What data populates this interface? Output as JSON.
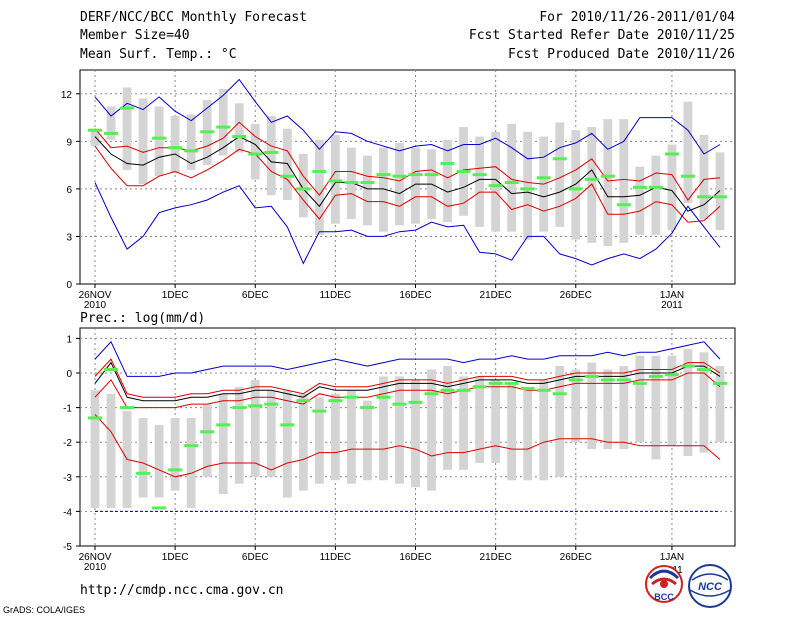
{
  "header": {
    "title": "DERF/NCC/BCC Monthly Forecast",
    "member_size": "Member Size=40",
    "forecast_period": "For 2010/11/26-2011/01/04",
    "started_refer_date": "Fcst Started Refer Date 2010/11/25",
    "produced_date": "Fcst Produced Date 2010/11/26"
  },
  "footer": {
    "url": "http://cmdp.ncc.cma.gov.cn",
    "credit": "GrADS: COLA/IGES",
    "logo_bcc": "BCC",
    "logo_ncc": "NCC",
    "logo_partial_year": "2011"
  },
  "colors": {
    "box": "#d4d4d4",
    "mean": "#000000",
    "inner": "#dd0000",
    "outer": "#0000cc",
    "marker": "#55ee55",
    "grid": "#888888"
  },
  "chart_data": [
    {
      "type": "line",
      "title": "Mean Surf. Temp.: °C",
      "x_axis": {
        "day_range": [
          1,
          40
        ],
        "ticks": [
          {
            "day": 1,
            "label": "26NOV",
            "sub": "2010"
          },
          {
            "day": 6,
            "label": "1DEC",
            "sub": ""
          },
          {
            "day": 11,
            "label": "6DEC",
            "sub": ""
          },
          {
            "day": 16,
            "label": "11DEC",
            "sub": ""
          },
          {
            "day": 21,
            "label": "16DEC",
            "sub": ""
          },
          {
            "day": 26,
            "label": "21DEC",
            "sub": ""
          },
          {
            "day": 31,
            "label": "26DEC",
            "sub": ""
          },
          {
            "day": 37,
            "label": "1JAN",
            "sub": "2011"
          }
        ]
      },
      "ylim": [
        0,
        13.5
      ],
      "yticks": [
        0,
        3,
        6,
        9,
        12
      ],
      "grid": true,
      "boxes_low": [
        8.7,
        9.1,
        7.2,
        6.3,
        6.8,
        7.0,
        7.2,
        7.5,
        8.1,
        8.3,
        6.6,
        5.6,
        5.3,
        4.2,
        3.1,
        3.8,
        4.1,
        3.7,
        3.3,
        3.7,
        3.8,
        4.1,
        3.9,
        4.3,
        3.6,
        3.3,
        3.3,
        2.8,
        3.3,
        3.6,
        2.8,
        2.6,
        2.4,
        2.6,
        3.1,
        3.1,
        3.4,
        5.1,
        4.1,
        3.4
      ],
      "boxes_high": [
        9.8,
        11.2,
        12.4,
        11.7,
        11.2,
        10.6,
        10.7,
        11.6,
        12.3,
        11.4,
        10.1,
        10.6,
        9.8,
        8.2,
        9.1,
        9.4,
        8.6,
        8.1,
        8.6,
        8.9,
        8.6,
        8.5,
        9.1,
        9.9,
        9.3,
        9.6,
        10.1,
        9.6,
        9.3,
        10.2,
        9.7,
        9.9,
        10.4,
        10.4,
        7.4,
        8.1,
        8.8,
        11.5,
        9.4,
        8.3
      ],
      "series": [
        {
          "name": "ensemble mean",
          "color": "#000000",
          "values": [
            9.3,
            8.2,
            7.6,
            7.5,
            8.0,
            8.2,
            7.6,
            8.0,
            8.6,
            9.3,
            8.8,
            7.7,
            7.6,
            6.0,
            4.9,
            6.4,
            6.4,
            6.0,
            6.0,
            5.7,
            6.3,
            6.3,
            5.8,
            6.1,
            6.6,
            6.6,
            5.7,
            5.8,
            5.5,
            5.8,
            6.3,
            7.2,
            5.5,
            5.5,
            5.6,
            6.1,
            5.9,
            4.6,
            5.0,
            5.9
          ]
        },
        {
          "name": "upper spread",
          "color": "#dd0000",
          "values": [
            9.8,
            8.6,
            8.7,
            8.3,
            8.6,
            8.6,
            8.4,
            8.7,
            9.2,
            10.2,
            9.3,
            8.7,
            8.4,
            6.8,
            5.6,
            7.1,
            7.1,
            6.8,
            6.7,
            6.5,
            7.1,
            7.2,
            6.7,
            7.2,
            7.3,
            7.4,
            6.6,
            6.4,
            6.3,
            6.7,
            7.2,
            7.9,
            6.5,
            6.6,
            6.5,
            7.0,
            6.9,
            5.3,
            6.6,
            6.7
          ]
        },
        {
          "name": "lower spread",
          "color": "#dd0000",
          "values": [
            8.7,
            7.3,
            6.2,
            6.2,
            6.8,
            7.1,
            6.7,
            7.2,
            7.8,
            8.5,
            8.2,
            7.1,
            6.6,
            5.3,
            4.1,
            5.6,
            5.7,
            5.2,
            5.2,
            4.9,
            5.5,
            5.5,
            4.9,
            5.1,
            5.8,
            5.8,
            4.7,
            5.0,
            4.6,
            4.9,
            5.4,
            6.3,
            4.4,
            4.4,
            4.6,
            5.2,
            5.0,
            3.9,
            4.0,
            4.9
          ]
        },
        {
          "name": "maximum",
          "color": "#0000cc",
          "values": [
            11.8,
            10.6,
            11.4,
            11.0,
            11.8,
            10.9,
            10.3,
            11.1,
            11.9,
            12.9,
            11.5,
            10.2,
            10.6,
            9.7,
            8.5,
            9.6,
            9.5,
            9.0,
            8.7,
            8.4,
            8.7,
            8.8,
            8.4,
            8.8,
            8.8,
            9.2,
            8.6,
            7.9,
            8.0,
            8.6,
            8.9,
            9.5,
            8.5,
            9.0,
            10.5,
            10.5,
            10.5,
            9.7,
            8.2,
            8.8
          ]
        },
        {
          "name": "minimum",
          "color": "#0000cc",
          "values": [
            6.4,
            4.2,
            2.2,
            3.0,
            4.5,
            4.8,
            5.0,
            5.3,
            5.8,
            6.2,
            4.8,
            4.9,
            3.6,
            1.3,
            3.3,
            3.3,
            3.4,
            3.0,
            3.0,
            3.3,
            3.4,
            3.9,
            3.6,
            3.7,
            2.0,
            1.9,
            1.5,
            3.0,
            3.0,
            1.9,
            1.6,
            1.2,
            1.6,
            1.9,
            1.6,
            2.2,
            3.2,
            4.9,
            3.6,
            2.3
          ]
        },
        {
          "name": "median marker",
          "color": "#55ee55",
          "values": [
            9.7,
            9.5,
            11.1,
            null,
            9.2,
            8.6,
            8.4,
            9.6,
            9.9,
            9.3,
            8.2,
            8.3,
            6.8,
            6.0,
            7.1,
            6.5,
            6.4,
            6.4,
            6.9,
            6.8,
            6.9,
            6.9,
            7.6,
            7.1,
            6.9,
            6.2,
            6.4,
            6.0,
            6.7,
            7.9,
            6.0,
            6.6,
            6.8,
            5.0,
            6.1,
            6.1,
            8.2,
            6.8,
            5.5,
            5.5
          ]
        }
      ]
    },
    {
      "type": "line",
      "title": "Prec.: log(mm/d)",
      "x_axis": {
        "day_range": [
          1,
          40
        ],
        "ticks": [
          {
            "day": 1,
            "label": "26NOV",
            "sub": "2010"
          },
          {
            "day": 6,
            "label": "1DEC",
            "sub": ""
          },
          {
            "day": 11,
            "label": "6DEC",
            "sub": ""
          },
          {
            "day": 16,
            "label": "11DEC",
            "sub": ""
          },
          {
            "day": 21,
            "label": "16DEC",
            "sub": ""
          },
          {
            "day": 26,
            "label": "21DEC",
            "sub": ""
          },
          {
            "day": 31,
            "label": "26DEC",
            "sub": ""
          },
          {
            "day": 37,
            "label": "1JAN",
            "sub": ""
          }
        ]
      },
      "ylim": [
        -5,
        1.3
      ],
      "yticks": [
        -5,
        -4,
        -3,
        -2,
        -1,
        0,
        1
      ],
      "grid": true,
      "boxes_low": [
        -3.9,
        -3.9,
        -3.9,
        -3.6,
        -3.6,
        -3.4,
        -3.9,
        -3.0,
        -3.5,
        -3.2,
        -3.0,
        -3.0,
        -3.6,
        -3.4,
        -3.2,
        -3.1,
        -3.2,
        -3.1,
        -3.1,
        -3.2,
        -3.3,
        -3.4,
        -2.8,
        -2.8,
        -2.6,
        -2.6,
        -3.1,
        -3.1,
        -3.1,
        -3.0,
        -2.0,
        -2.2,
        -2.2,
        -2.2,
        -2.0,
        -2.5,
        -2.1,
        -2.4,
        -2.3,
        -2.0
      ],
      "boxes_high": [
        -0.5,
        -0.6,
        -1.1,
        -1.3,
        -1.5,
        -1.3,
        -1.3,
        -0.9,
        -0.6,
        -0.4,
        -0.2,
        -0.5,
        -0.5,
        -0.6,
        -0.7,
        -0.6,
        -0.5,
        -0.8,
        -0.1,
        -0.1,
        -0.2,
        0.1,
        0.2,
        -0.1,
        -0.1,
        -0.2,
        -0.3,
        -0.4,
        -0.2,
        0.2,
        0.1,
        0.3,
        0.1,
        0.2,
        0.5,
        0.5,
        0.5,
        0.7,
        0.6,
        0.2
      ],
      "series": [
        {
          "name": "ensemble mean",
          "color": "#000000",
          "values": [
            -0.3,
            0.3,
            -0.7,
            -0.8,
            -0.8,
            -0.8,
            -0.7,
            -0.7,
            -0.6,
            -0.6,
            -0.5,
            -0.5,
            -0.6,
            -0.7,
            -0.4,
            -0.5,
            -0.5,
            -0.5,
            -0.4,
            -0.3,
            -0.3,
            -0.3,
            -0.4,
            -0.3,
            -0.2,
            -0.2,
            -0.2,
            -0.3,
            -0.3,
            -0.2,
            -0.1,
            -0.1,
            -0.1,
            -0.1,
            0.0,
            0.0,
            0.0,
            0.2,
            0.2,
            -0.1
          ]
        },
        {
          "name": "upper spread",
          "color": "#dd0000",
          "values": [
            -0.1,
            0.4,
            -0.6,
            -0.7,
            -0.7,
            -0.7,
            -0.6,
            -0.6,
            -0.5,
            -0.5,
            -0.4,
            -0.4,
            -0.5,
            -0.6,
            -0.3,
            -0.4,
            -0.4,
            -0.4,
            -0.3,
            -0.2,
            -0.2,
            -0.2,
            -0.3,
            -0.2,
            -0.1,
            -0.1,
            -0.1,
            -0.2,
            -0.2,
            -0.1,
            0.0,
            0.0,
            0.0,
            0.0,
            0.1,
            0.1,
            0.1,
            0.3,
            0.3,
            0.0
          ]
        },
        {
          "name": "lower spread",
          "color": "#dd0000",
          "values": [
            -0.7,
            -0.2,
            -1.0,
            -1.0,
            -1.0,
            -1.0,
            -0.9,
            -0.9,
            -0.8,
            -0.8,
            -0.7,
            -0.7,
            -0.8,
            -0.9,
            -0.6,
            -0.7,
            -0.7,
            -0.7,
            -0.6,
            -0.5,
            -0.5,
            -0.5,
            -0.6,
            -0.5,
            -0.4,
            -0.4,
            -0.4,
            -0.5,
            -0.5,
            -0.4,
            -0.3,
            -0.3,
            -0.3,
            -0.3,
            -0.2,
            -0.2,
            -0.2,
            0.0,
            0.0,
            -0.4
          ]
        },
        {
          "name": "lower bound",
          "color": "#dd0000",
          "values": [
            -1.2,
            -1.7,
            -2.5,
            -2.6,
            -2.8,
            -3.0,
            -2.9,
            -2.7,
            -2.6,
            -2.6,
            -2.6,
            -2.8,
            -2.6,
            -2.5,
            -2.3,
            -2.3,
            -2.2,
            -2.2,
            -2.2,
            -2.1,
            -2.2,
            -2.4,
            -2.3,
            -2.3,
            -2.2,
            -2.1,
            -2.2,
            -2.2,
            -2.0,
            -1.9,
            -1.9,
            -1.9,
            -2.0,
            -2.0,
            -2.1,
            -2.1,
            -2.1,
            -2.1,
            -2.1,
            -2.5
          ]
        },
        {
          "name": "maximum",
          "color": "#0000cc",
          "values": [
            0.4,
            0.9,
            -0.1,
            -0.1,
            -0.1,
            0.0,
            0.0,
            0.1,
            0.2,
            0.2,
            0.2,
            0.2,
            0.1,
            0.2,
            0.3,
            0.4,
            0.3,
            0.2,
            0.3,
            0.4,
            0.4,
            0.4,
            0.4,
            0.3,
            0.4,
            0.4,
            0.5,
            0.4,
            0.4,
            0.5,
            0.5,
            0.5,
            0.6,
            0.5,
            0.6,
            0.6,
            0.7,
            0.8,
            0.9,
            0.4
          ]
        },
        {
          "name": "minimum",
          "color": "#0000cc",
          "values": [
            -4.0,
            -4.0,
            -4.0,
            -4.0,
            -4.0,
            -4.0,
            -4.0,
            -4.0,
            -4.0,
            -4.0,
            -4.0,
            -4.0,
            -4.0,
            -4.0,
            -4.0,
            -4.0,
            -4.0,
            -4.0,
            -4.0,
            -4.0,
            -4.0,
            -4.0,
            -4.0,
            -4.0,
            -4.0,
            -4.0,
            -4.0,
            -4.0,
            -4.0,
            -4.0,
            -4.0,
            -4.0,
            -4.0,
            -4.0,
            -4.0,
            -4.0,
            -4.0,
            -4.0,
            -4.0,
            -4.0
          ]
        },
        {
          "name": "median marker",
          "color": "#55ee55",
          "values": [
            -1.3,
            0.1,
            -1.0,
            -2.9,
            -3.9,
            -2.8,
            -2.1,
            -1.7,
            -1.5,
            -1.0,
            -0.95,
            -0.9,
            -1.5,
            -0.8,
            -1.1,
            -0.8,
            -0.7,
            -1.0,
            -0.7,
            -0.9,
            -0.85,
            -0.6,
            -0.5,
            -0.5,
            -0.4,
            -0.3,
            -0.3,
            -0.45,
            -0.5,
            -0.6,
            -0.2,
            -0.1,
            -0.2,
            -0.2,
            -0.3,
            -0.1,
            -0.05,
            0.2,
            0.1,
            -0.3
          ]
        }
      ]
    }
  ]
}
